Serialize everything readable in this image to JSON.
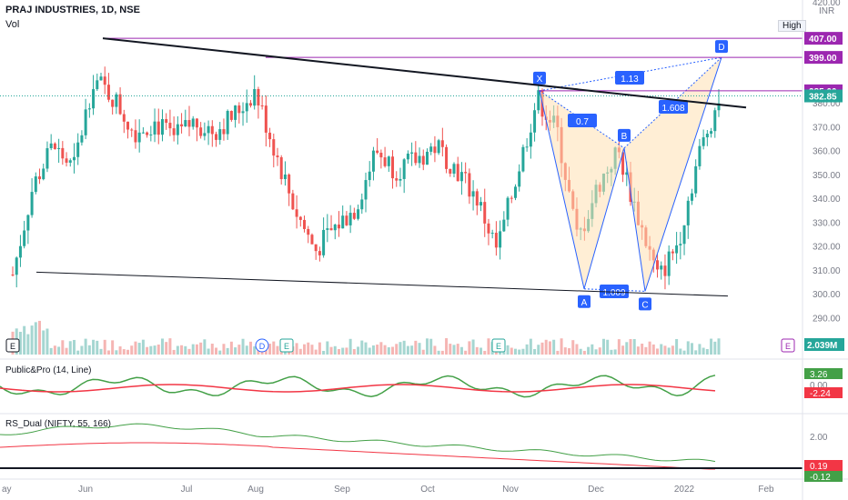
{
  "header": {
    "symbol": "PRAJ INDUSTRIES, 1D, NSE",
    "vol_label": "Vol",
    "high_label": "High",
    "currency": "INR",
    "top_clip": "420.00"
  },
  "price_axis": {
    "ticks": [
      "380.00",
      "370.00",
      "360.00",
      "350.00",
      "340.00",
      "330.00",
      "320.00",
      "310.00",
      "300.00",
      "290.00"
    ],
    "tick_values": [
      380,
      370,
      360,
      350,
      340,
      330,
      320,
      310,
      300,
      290
    ],
    "tags": [
      {
        "label": "407.00",
        "value": 407,
        "color": "#9c27b0"
      },
      {
        "label": "399.00",
        "value": 399,
        "color": "#9c27b0"
      },
      {
        "label": "385.00",
        "value": 385,
        "color": "#9c27b0"
      },
      {
        "label": "382.85",
        "value": 382.85,
        "color": "#26a69a"
      }
    ],
    "volume_tag": {
      "label": "2.039M",
      "color": "#26a69a"
    }
  },
  "time_axis": {
    "labels": [
      "ay",
      "Jun",
      "Jul",
      "Aug",
      "Sep",
      "Oct",
      "Nov",
      "Dec",
      "2022",
      "Feb"
    ]
  },
  "indicators": [
    {
      "name": "Public&Pro (14, Line)",
      "values": [
        "3.26",
        "0.00",
        "-2.24"
      ],
      "colors": [
        "#43a047",
        "#131722",
        "#f23645"
      ]
    },
    {
      "name": "RS_Dual (NIFTY, 55, 166)",
      "values": [
        "2.00",
        "0.19",
        "-0.12"
      ],
      "colors": [
        "#131722",
        "#f23645",
        "#43a047"
      ]
    }
  ],
  "pattern": {
    "points": [
      "X",
      "A",
      "B",
      "C",
      "D"
    ],
    "ratios": [
      "0.7",
      "1.608",
      "1.13",
      "1.009"
    ]
  },
  "event_markers": [
    "E",
    "D",
    "E",
    "E",
    "E"
  ],
  "chart_data": {
    "type": "candlestick",
    "title": "PRAJ INDUSTRIES, 1D, NSE",
    "x": [
      "May",
      "Jun",
      "Jul",
      "Aug",
      "Sep",
      "Oct",
      "Nov",
      "Dec",
      "2022",
      "Feb"
    ],
    "ylim": [
      285,
      420
    ],
    "last_price": 382.85,
    "levels": [
      407.0,
      399.0,
      385.0
    ],
    "harmonic": {
      "X": 385,
      "A": 302,
      "B": 361,
      "C": 301,
      "D": 399
    },
    "approx_weekly_closes": [
      {
        "month": "May",
        "values": [
          308,
          345,
          362,
          352
        ]
      },
      {
        "month": "Jun",
        "values": [
          390,
          382,
          368,
          372
        ]
      },
      {
        "month": "Jul",
        "values": [
          365,
          372,
          368,
          375
        ]
      },
      {
        "month": "Aug",
        "values": [
          385,
          360,
          335,
          318
        ]
      },
      {
        "month": "Sep",
        "values": [
          328,
          336,
          360,
          352
        ]
      },
      {
        "month": "Oct",
        "values": [
          356,
          362,
          352,
          340
        ]
      },
      {
        "month": "Nov",
        "values": [
          318,
          350,
          382,
          368
        ]
      },
      {
        "month": "Dec",
        "values": [
          322,
          345,
          360,
          332
        ]
      },
      {
        "month": "2022",
        "values": [
          306,
          322,
          358,
          382
        ]
      }
    ]
  }
}
